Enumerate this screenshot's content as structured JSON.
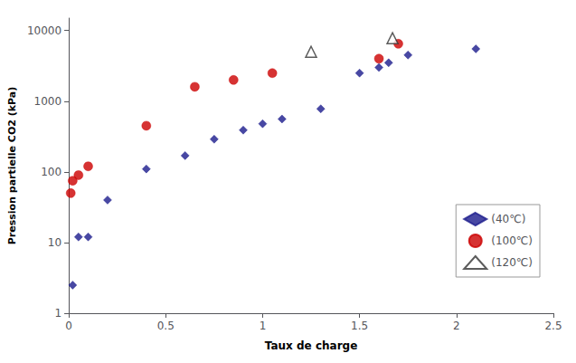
{
  "chart_data": {
    "type": "scatter",
    "xlabel": "Taux de charge",
    "ylabel": "Pression partielle CO2 (kPa)",
    "series": [
      {
        "name": "(40℃)",
        "color": "#1a1a8c",
        "marker": "diamond",
        "x": [
          0.02,
          0.05,
          0.1,
          0.2,
          0.4,
          0.6,
          0.75,
          0.9,
          1.0,
          1.1,
          1.3,
          1.5,
          1.6,
          1.65,
          1.75,
          2.1
        ],
        "values": [
          2.5,
          12,
          12,
          40,
          110,
          170,
          290,
          390,
          480,
          560,
          780,
          2500,
          3000,
          3500,
          4500,
          5500
        ]
      },
      {
        "name": "(100℃)",
        "color": "#CC0000",
        "marker": "circle",
        "x": [
          0.01,
          0.02,
          0.05,
          0.1,
          0.4,
          0.65,
          0.85,
          1.05,
          1.6,
          1.7
        ],
        "values": [
          50,
          75,
          90,
          120,
          450,
          1600,
          2000,
          2500,
          4000,
          6500
        ]
      },
      {
        "name": "(120℃)",
        "color": "#333333",
        "marker": "triangle-open",
        "x": [
          1.25,
          1.67
        ],
        "values": [
          5000,
          7800
        ]
      }
    ],
    "xlim": [
      0,
      2.5
    ],
    "ylim": [
      1,
      15000
    ],
    "xticks": [
      0,
      0.5,
      1.0,
      1.5,
      2.0,
      2.5
    ],
    "yticks": [
      1,
      10,
      100,
      1000,
      10000
    ],
    "log": "y",
    "grid": false,
    "legend": "lower right"
  }
}
